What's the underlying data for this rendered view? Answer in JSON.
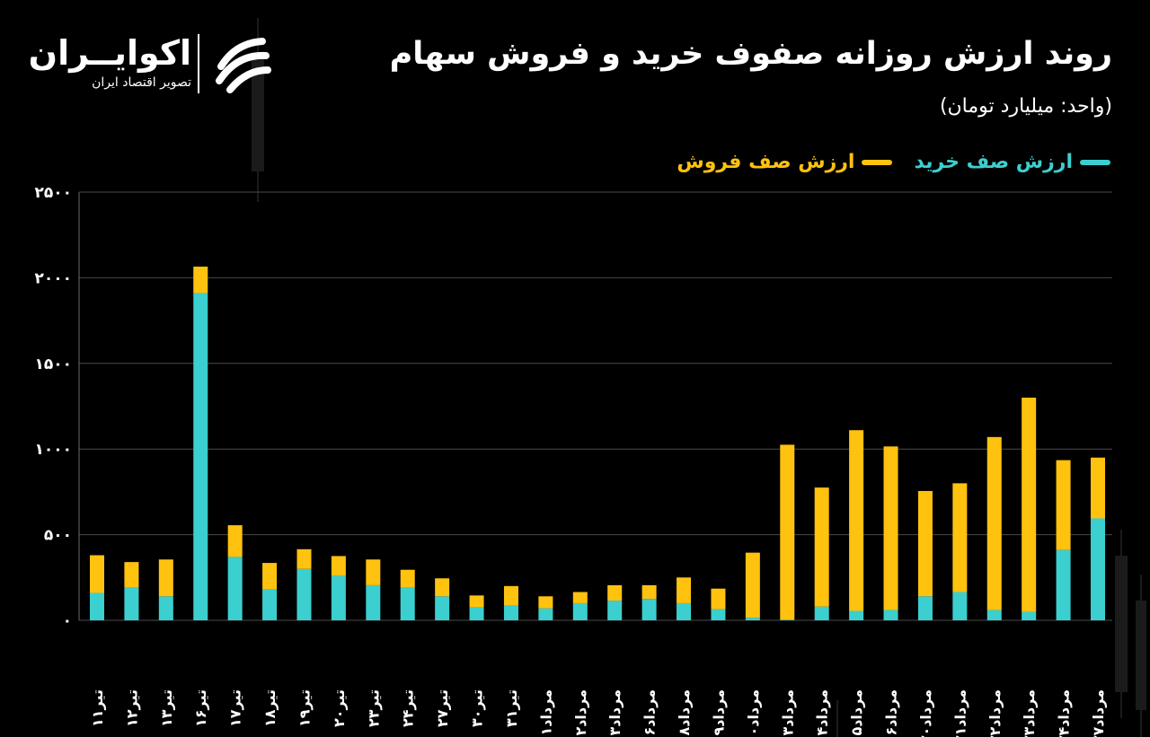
{
  "title": "روند ارزش روزانه صفوف خرید و فروش سهام",
  "subtitle": "(واحد: میلیارد تومان)",
  "brand": {
    "name": "اکوایــران",
    "tagline": "تصویر اقتصاد ایران",
    "logo_icon": "ecoiran-logo-icon"
  },
  "colors": {
    "background": "#000000",
    "buy": "#3ccfcf",
    "sell": "#ffc20e",
    "grid": "#4a4a4a"
  },
  "chart_data": {
    "type": "bar",
    "stacked": true,
    "categories": [
      "تیر۱۱",
      "تیر۱۲",
      "تیر۱۳",
      "تیر۱۶",
      "تیر۱۷",
      "تیر۱۸",
      "تیر۱۹",
      "تیر۲۰",
      "تیر۲۳",
      "تیر۲۴",
      "تیر۲۷",
      "تیر۳۰",
      "تیر۳۱",
      "مرداد۱",
      "مرداد۲",
      "مرداد۳",
      "مرداد۶",
      "مرداد۸",
      "مرداد۹",
      "مرداد۱۰",
      "مرداد۱۳",
      "مرداد۱۴",
      "مرداد۱۵",
      "مرداد۱۶",
      "مرداد۲۰",
      "مرداد۲۱",
      "مرداد۲۲",
      "مرداد۲۳",
      "مرداد۲۴",
      "مرداد۲۷"
    ],
    "series": [
      {
        "name": "ارزش صف خرید",
        "color": "#3ccfcf",
        "values": [
          160,
          190,
          140,
          1910,
          370,
          180,
          300,
          260,
          205,
          190,
          140,
          75,
          85,
          70,
          100,
          115,
          125,
          100,
          65,
          15,
          5,
          80,
          55,
          60,
          140,
          165,
          60,
          50,
          410,
          595
        ]
      },
      {
        "name": "ارزش صف فروش",
        "color": "#ffc20e",
        "values": [
          220,
          150,
          215,
          155,
          185,
          155,
          115,
          115,
          150,
          105,
          105,
          70,
          115,
          70,
          65,
          90,
          80,
          150,
          120,
          380,
          1020,
          695,
          1055,
          955,
          615,
          635,
          1010,
          1250,
          525,
          355
        ]
      }
    ],
    "yticks": [
      0,
      500,
      1000,
      1500,
      2000,
      2500
    ],
    "ytick_labels": [
      "۰",
      "۵۰۰",
      "۱۰۰۰",
      "۱۵۰۰",
      "۲۰۰۰",
      "۲۵۰۰"
    ],
    "ylim": [
      0,
      2500
    ],
    "grid": true,
    "legend_position": "top-right"
  }
}
